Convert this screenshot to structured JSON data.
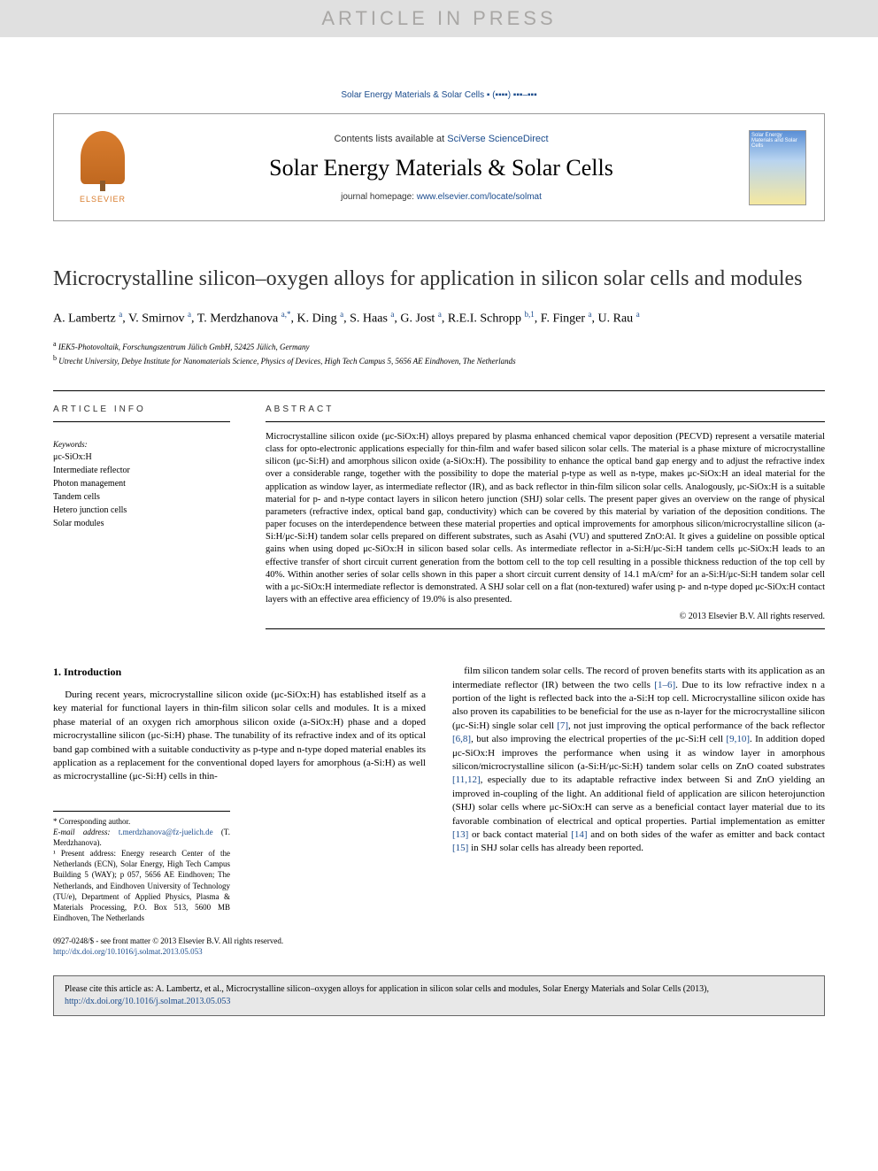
{
  "banner": {
    "article_in_press": "ARTICLE IN PRESS",
    "journal_ref": "Solar Energy Materials & Solar Cells ▪ (▪▪▪▪) ▪▪▪–▪▪▪"
  },
  "masthead": {
    "elsevier": "ELSEVIER",
    "contents_prefix": "Contents lists available at ",
    "contents_link": "SciVerse ScienceDirect",
    "journal_title": "Solar Energy Materials & Solar Cells",
    "homepage_prefix": "journal homepage: ",
    "homepage_url": "www.elsevier.com/locate/solmat",
    "cover_label": "Solar Energy Materials and Solar Cells"
  },
  "article": {
    "title": "Microcrystalline silicon–oxygen alloys for application in silicon solar cells and modules",
    "authors_html": "A. Lambertz <sup>a</sup>, V. Smirnov <sup>a</sup>, T. Merdzhanova <sup>a,*</sup>, K. Ding <sup>a</sup>, S. Haas <sup>a</sup>, G. Jost <sup>a</sup>, R.E.I. Schropp <sup>b,1</sup>, F. Finger <sup>a</sup>, U. Rau <sup>a</sup>",
    "affiliations": [
      {
        "sup": "a",
        "text": "IEK5-Photovoltaik, Forschungszentrum Jülich GmbH, 52425 Jülich, Germany"
      },
      {
        "sup": "b",
        "text": "Utrecht University, Debye Institute for Nanomaterials Science, Physics of Devices, High Tech Campus 5, 5656 AE Eindhoven, The Netherlands"
      }
    ]
  },
  "article_info": {
    "label": "ARTICLE INFO",
    "keywords_label": "Keywords:",
    "keywords": [
      "μc-SiOx:H",
      "Intermediate reflector",
      "Photon management",
      "Tandem cells",
      "Hetero junction cells",
      "Solar modules"
    ]
  },
  "abstract": {
    "label": "ABSTRACT",
    "text": "Microcrystalline silicon oxide (μc-SiOx:H) alloys prepared by plasma enhanced chemical vapor deposition (PECVD) represent a versatile material class for opto-electronic applications especially for thin-film and wafer based silicon solar cells. The material is a phase mixture of microcrystalline silicon (μc-Si:H) and amorphous silicon oxide (a-SiOx:H). The possibility to enhance the optical band gap energy and to adjust the refractive index over a considerable range, together with the possibility to dope the material p-type as well as n-type, makes μc-SiOx:H an ideal material for the application as window layer, as intermediate reflector (IR), and as back reflector in thin-film silicon solar cells. Analogously, μc-SiOx:H is a suitable material for p- and n-type contact layers in silicon hetero junction (SHJ) solar cells. The present paper gives an overview on the range of physical parameters (refractive index, optical band gap, conductivity) which can be covered by this material by variation of the deposition conditions. The paper focuses on the interdependence between these material properties and optical improvements for amorphous silicon/microcrystalline silicon (a-Si:H/μc-Si:H) tandem solar cells prepared on different substrates, such as Asahi (VU) and sputtered ZnO:Al. It gives a guideline on possible optical gains when using doped μc-SiOx:H in silicon based solar cells. As intermediate reflector in a-Si:H/μc-Si:H tandem cells μc-SiOx:H leads to an effective transfer of short circuit current generation from the bottom cell to the top cell resulting in a possible thickness reduction of the top cell by 40%. Within another series of solar cells shown in this paper a short circuit current density of 14.1 mA/cm² for an a-Si:H/μc-Si:H tandem solar cell with a μc-SiOx:H intermediate reflector is demonstrated. A SHJ solar cell on a flat (non-textured) wafer using p- and n-type doped μc-SiOx:H contact layers with an effective area efficiency of 19.0% is also presented.",
    "copyright": "© 2013 Elsevier B.V. All rights reserved."
  },
  "body": {
    "section_heading": "1.  Introduction",
    "col1": "During recent years, microcrystalline silicon oxide (μc-SiOx:H) has established itself as a key material for functional layers in thin-film silicon solar cells and modules. It is a mixed phase material of an oxygen rich amorphous silicon oxide (a-SiOx:H) phase and a doped microcrystalline silicon (μc-Si:H) phase. The tunability of its refractive index and of its optical band gap combined with a suitable conductivity as p-type and n-type doped material enables its application as a replacement for the conventional doped layers for amorphous (a-Si:H) as well as microcrystalline (μc-Si:H) cells in thin-",
    "col2_html": "film silicon tandem solar cells. The record of proven benefits starts with its application as an intermediate reflector (IR) between the two cells <span class='ref-link'>[1–6]</span>. Due to its low refractive index n a portion of the light is reflected back into the a-Si:H top cell. Microcrystalline silicon oxide has also proven its capabilities to be beneficial for the use as n-layer for the microcrystalline silicon (μc-Si:H) single solar cell <span class='ref-link'>[7]</span>, not just improving the optical performance of the back reflector <span class='ref-link'>[6,8]</span>, but also improving the electrical properties of the μc-Si:H cell <span class='ref-link'>[9,10]</span>. In addition doped μc-SiOx:H improves the performance when using it as window layer in amorphous silicon/microcrystalline silicon (a-Si:H/μc-Si:H) tandem solar cells on ZnO coated substrates <span class='ref-link'>[11,12]</span>, especially due to its adaptable refractive index between Si and ZnO yielding an improved in-coupling of the light. An additional field of application are silicon heterojunction (SHJ) solar cells where μc-SiOx:H can serve as a beneficial contact layer material due to its favorable combination of electrical and optical properties. Partial implementation as emitter <span class='ref-link'>[13]</span> or back contact material <span class='ref-link'>[14]</span> and on both sides of the wafer as emitter and back contact <span class='ref-link'>[15]</span> in SHJ solar cells has already been reported."
  },
  "footnotes": {
    "corresponding": "* Corresponding author.",
    "email_label": "E-mail address: ",
    "email": "t.merdzhanova@fz-juelich.de",
    "email_name": " (T. Merdzhanova).",
    "note1": "¹ Present address: Energy research Center of the Netherlands (ECN), Solar Energy, High Tech Campus Building 5 (WAY); p 057, 5656 AE Eindhoven; The Netherlands, and Eindhoven University of Technology (TU/e), Department of Applied Physics, Plasma & Materials Processing, P.O. Box 513, 5600 MB Eindhoven, The Netherlands"
  },
  "front_matter": {
    "line1": "0927-0248/$ - see front matter © 2013 Elsevier B.V. All rights reserved.",
    "doi": "http://dx.doi.org/10.1016/j.solmat.2013.05.053"
  },
  "citation_box": {
    "text_prefix": "Please cite this article as: A. Lambertz, et al., Microcrystalline silicon–oxygen alloys for application in silicon solar cells and modules, Solar Energy Materials and Solar Cells (2013), ",
    "doi": "http://dx.doi.org/10.1016/j.solmat.2013.05.053"
  }
}
